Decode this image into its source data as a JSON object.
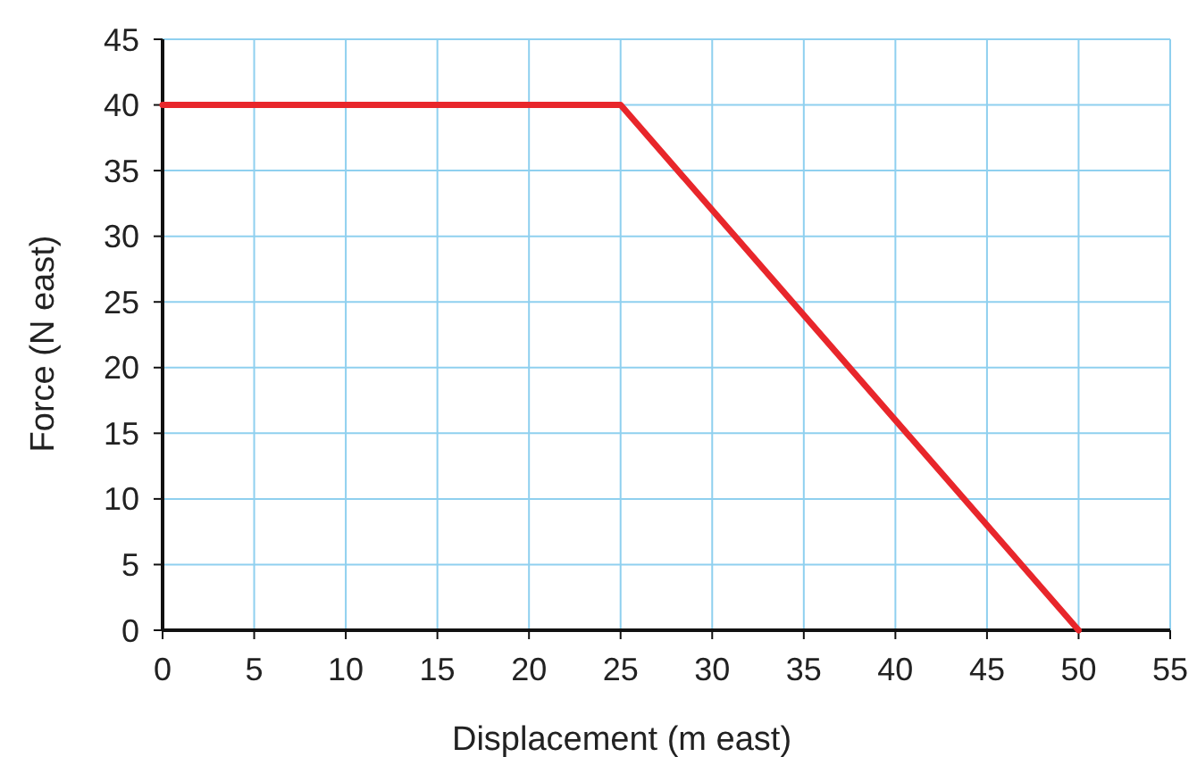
{
  "chart_data": {
    "type": "line",
    "xlabel": "Displacement (m east)",
    "ylabel": "Force (N east)",
    "x": [
      0,
      25,
      50
    ],
    "series": [
      {
        "color": "#e8262b",
        "values": [
          40,
          40,
          0
        ]
      }
    ],
    "xlim": [
      0,
      55
    ],
    "xticks": [
      0,
      5,
      10,
      15,
      20,
      25,
      30,
      35,
      40,
      45,
      50,
      55
    ],
    "ylim": [
      0,
      45
    ],
    "yticks": [
      0,
      5,
      10,
      15,
      20,
      25,
      30,
      35,
      40,
      45
    ],
    "grid": true,
    "marker": "none",
    "line_style": "solid"
  }
}
